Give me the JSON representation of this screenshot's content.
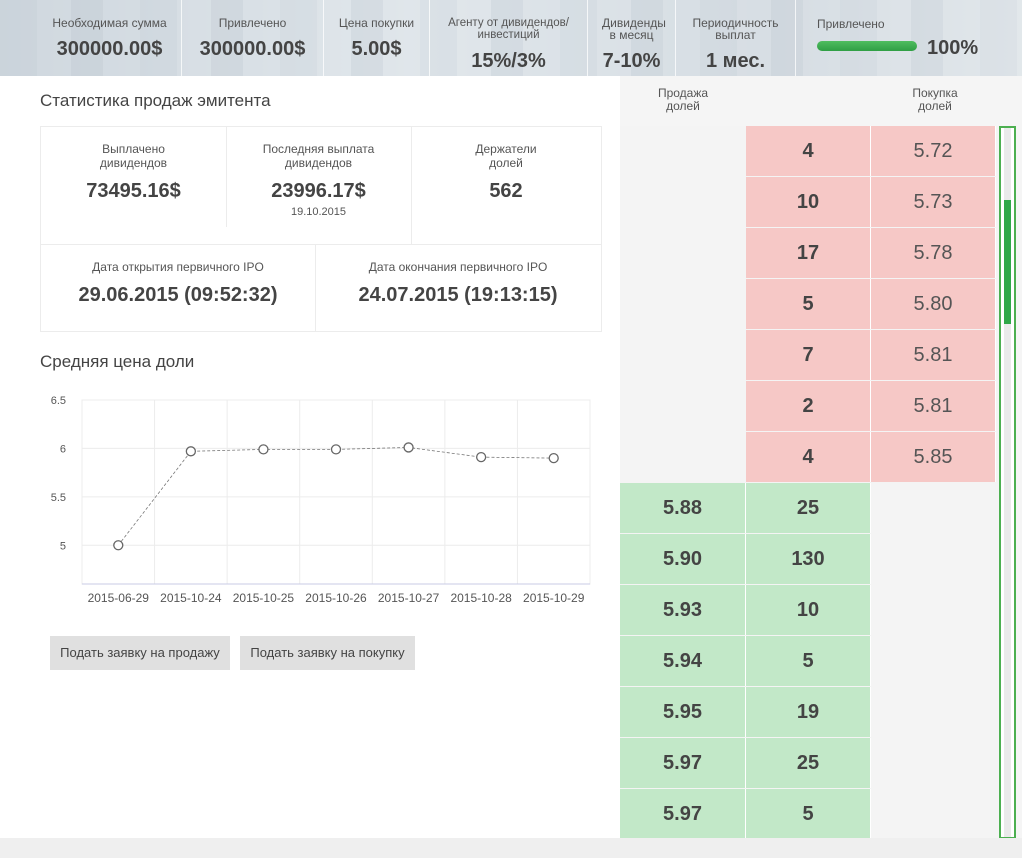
{
  "banner": {
    "required_label": "Необходимая сумма",
    "required_value": "300000.00$",
    "raised_label": "Привлечено",
    "raised_value": "300000.00$",
    "price_label": "Цена покупки",
    "price_value": "5.00$",
    "agent_label": "Агенту от дивидендов/инвестиций",
    "agent_value": "15%/3%",
    "dividends_label": "Дивиденды в месяц",
    "dividends_value": "7-10%",
    "period_label": "Периодичность выплат",
    "period_value": "1 мес.",
    "progress_label": "Привлечено",
    "progress_value": "100%",
    "progress_fraction": 1.0
  },
  "stats": {
    "title": "Статистика продаж эмитента",
    "paid_label": "Выплачено дивидендов",
    "paid_value": "73495.16$",
    "last_label": "Последняя выплата дивидендов",
    "last_value": "23996.17$",
    "last_date": "19.10.2015",
    "holders_label": "Держатели долей",
    "holders_value": "562",
    "ipo_open_label": "Дата открытия первичного IPO",
    "ipo_open_value": "29.06.2015 (09:52:32)",
    "ipo_close_label": "Дата окончания первичного IPO",
    "ipo_close_value": "24.07.2015 (19:13:15)"
  },
  "chart_title": "Средняя цена доли",
  "chart_data": {
    "type": "line",
    "categories": [
      "2015-06-29",
      "2015-10-24",
      "2015-10-25",
      "2015-10-26",
      "2015-10-27",
      "2015-10-28",
      "2015-10-29"
    ],
    "values": [
      5.0,
      5.97,
      5.99,
      5.99,
      6.01,
      5.91,
      5.9
    ],
    "ylim": [
      4.6,
      6.5
    ],
    "yticks": [
      "6.5",
      "6",
      "5.5",
      "5"
    ],
    "grid": true
  },
  "buttons": {
    "sell": "Подать заявку на продажу",
    "buy": "Подать заявку на покупку"
  },
  "orderbook": {
    "sell_header": "Продажа долей",
    "buy_header": "Покупка долей",
    "asks": [
      {
        "qty": "4",
        "price": "5.72"
      },
      {
        "qty": "10",
        "price": "5.73"
      },
      {
        "qty": "17",
        "price": "5.78"
      },
      {
        "qty": "5",
        "price": "5.80"
      },
      {
        "qty": "7",
        "price": "5.81"
      },
      {
        "qty": "2",
        "price": "5.81"
      },
      {
        "qty": "4",
        "price": "5.85"
      }
    ],
    "bids": [
      {
        "price": "5.88",
        "qty": "25"
      },
      {
        "price": "5.90",
        "qty": "130"
      },
      {
        "price": "5.93",
        "qty": "10"
      },
      {
        "price": "5.94",
        "qty": "5"
      },
      {
        "price": "5.95",
        "qty": "19"
      },
      {
        "price": "5.97",
        "qty": "25"
      },
      {
        "price": "5.97",
        "qty": "5"
      }
    ]
  }
}
